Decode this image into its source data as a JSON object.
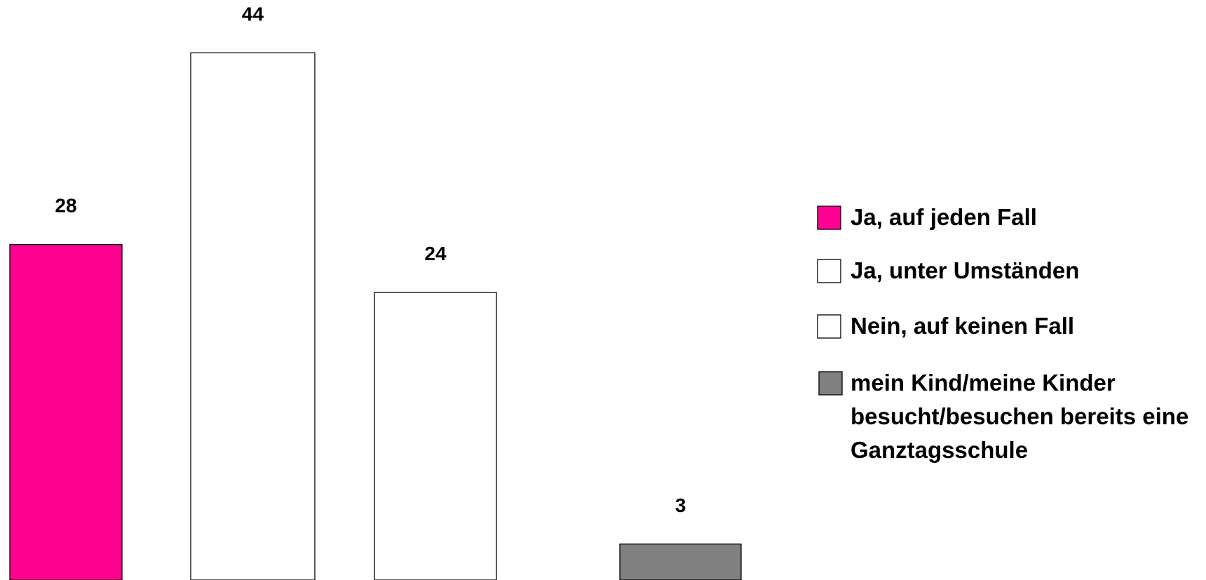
{
  "chart_data": {
    "type": "bar",
    "ylim": [
      0,
      48
    ],
    "series": [
      {
        "name": "Ja, auf jeden Fall",
        "color": "#ff0090",
        "values": [
          28
        ]
      },
      {
        "name": "Ja, unter Umständen",
        "color": "#ffffff",
        "values": [
          44
        ]
      },
      {
        "name": "Nein, auf keinen Fall",
        "color": "#ffffff",
        "values": [
          24
        ]
      },
      {
        "name": "mein Kind/meine Kinder besucht/besuchen bereits eine Ganztagsschule",
        "color": "#808080",
        "values": [
          3
        ]
      }
    ]
  }
}
